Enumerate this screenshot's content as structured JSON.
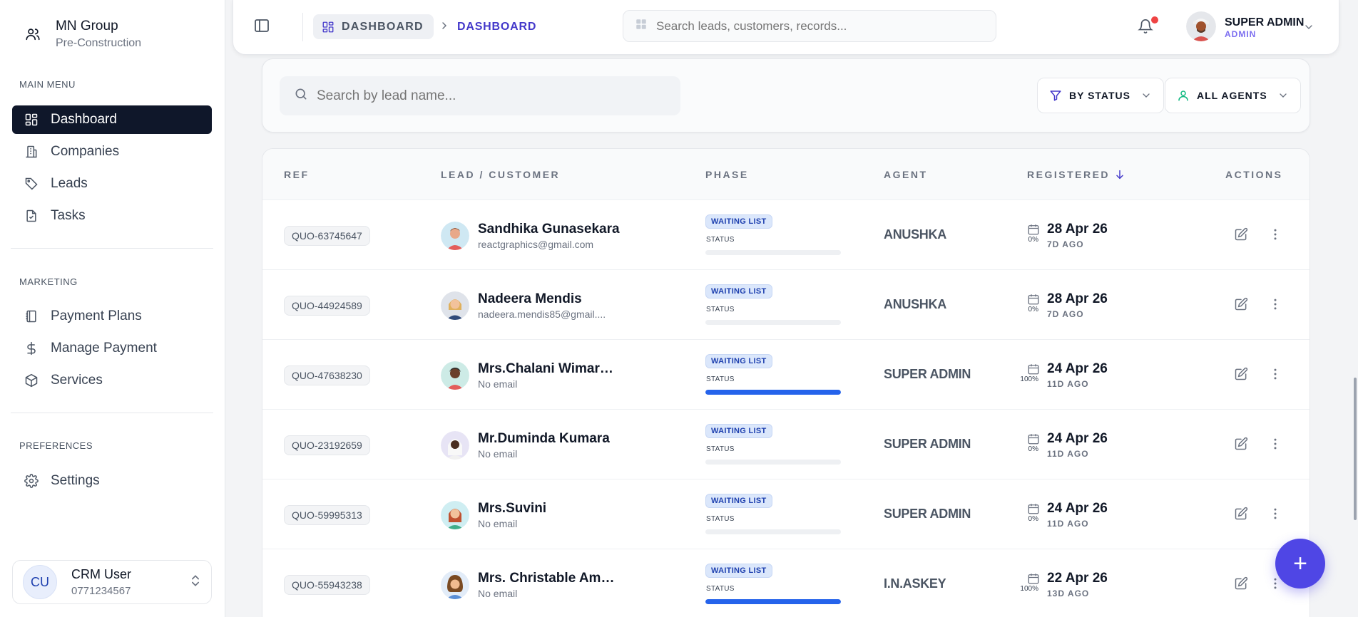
{
  "brand": {
    "name": "MN Group",
    "subtitle": "Pre-Construction"
  },
  "sidebar": {
    "sections": [
      {
        "title": "MAIN MENU"
      },
      {
        "title": "MARKETING"
      },
      {
        "title": "PREFERENCES"
      }
    ],
    "items": [
      {
        "label": "Dashboard",
        "icon": "dashboard-grid-icon",
        "active": true
      },
      {
        "label": "Companies",
        "icon": "building-icon"
      },
      {
        "label": "Leads",
        "icon": "tag-icon"
      },
      {
        "label": "Tasks",
        "icon": "file-check-icon"
      },
      {
        "label": "Payment Plans",
        "icon": "notebook-icon"
      },
      {
        "label": "Manage Payment",
        "icon": "dollar-icon"
      },
      {
        "label": "Services",
        "icon": "box-icon"
      },
      {
        "label": "Settings",
        "icon": "gear-icon"
      }
    ],
    "user": {
      "initials": "CU",
      "name": "CRM User",
      "phone": "0771234567"
    }
  },
  "topbar": {
    "breadcrumb_root": "DASHBOARD",
    "breadcrumb_current": "DASHBOARD",
    "search_placeholder": "Search leads, customers, records...",
    "user_name": "SUPER ADMIN",
    "user_role": "ADMIN"
  },
  "filters": {
    "search_placeholder": "Search by lead name...",
    "status_label": "BY STATUS",
    "agents_label": "ALL AGENTS"
  },
  "table": {
    "columns": [
      "REF",
      "LEAD / CUSTOMER",
      "PHASE",
      "AGENT",
      "REGISTERED",
      "ACTIONS"
    ],
    "rows": [
      {
        "ref": "QUO-63745647",
        "name": "Sandhika Gunasekara",
        "email": "reactgraphics@gmail.com",
        "phase": "WAITING LIST",
        "status_label": "STATUS",
        "progress": 0,
        "progress_text": "0%",
        "agent": "ANUSHKA",
        "date": "28 Apr 26",
        "ago": "7D AGO"
      },
      {
        "ref": "QUO-44924589",
        "name": "Nadeera Mendis",
        "email": "nadeera.mendis85@gmail....",
        "phase": "WAITING LIST",
        "status_label": "STATUS",
        "progress": 0,
        "progress_text": "0%",
        "agent": "ANUSHKA",
        "date": "28 Apr 26",
        "ago": "7D AGO"
      },
      {
        "ref": "QUO-47638230",
        "name": "Mrs.Chalani Wimarsh...",
        "email": "No email",
        "phase": "WAITING LIST",
        "status_label": "STATUS",
        "progress": 100,
        "progress_text": "100%",
        "agent": "SUPER ADMIN",
        "date": "24 Apr 26",
        "ago": "11D AGO"
      },
      {
        "ref": "QUO-23192659",
        "name": "Mr.Duminda Kumara",
        "email": "No email",
        "phase": "WAITING LIST",
        "status_label": "STATUS",
        "progress": 0,
        "progress_text": "0%",
        "agent": "SUPER ADMIN",
        "date": "24 Apr 26",
        "ago": "11D AGO"
      },
      {
        "ref": "QUO-59995313",
        "name": "Mrs.Suvini",
        "email": "No email",
        "phase": "WAITING LIST",
        "status_label": "STATUS",
        "progress": 0,
        "progress_text": "0%",
        "agent": "SUPER ADMIN",
        "date": "24 Apr 26",
        "ago": "11D AGO"
      },
      {
        "ref": "QUO-55943238",
        "name": "Mrs. Christable Amar...",
        "email": "No email",
        "phase": "WAITING LIST",
        "status_label": "STATUS",
        "progress": 100,
        "progress_text": "100%",
        "agent": "I.N.ASKEY",
        "date": "22 Apr 26",
        "ago": "13D AGO"
      }
    ]
  },
  "fab_label": "+",
  "colors": {
    "accent": "#4f46e5",
    "active_nav": "#0f172a",
    "progress": "#2563eb",
    "breadcrumb": "#4338ca",
    "notification": "#ef4444"
  }
}
